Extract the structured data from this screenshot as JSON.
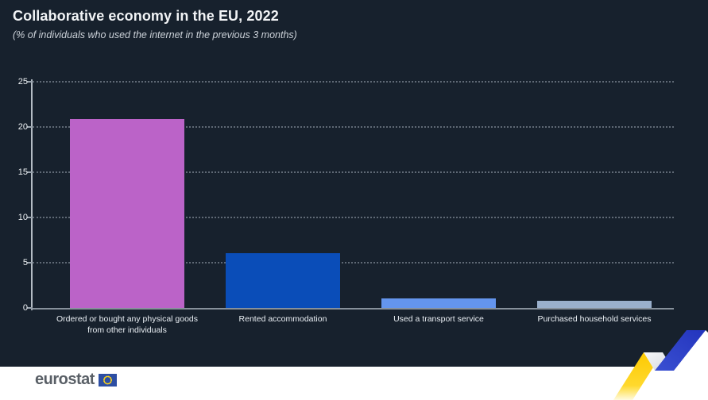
{
  "chart_data": {
    "type": "bar",
    "title": "Collaborative economy in the EU, 2022",
    "subtitle": "(% of individuals who used the internet in the previous 3 months)",
    "categories": [
      "Ordered or bought any physical goods from other individuals",
      "Rented accommodation",
      "Used a transport service",
      "Purchased household services"
    ],
    "values": [
      20.9,
      6.1,
      1.1,
      0.8
    ],
    "bar_colors": [
      "#bb63c8",
      "#0a4db8",
      "#6495ed",
      "#9ab0cc"
    ],
    "xlabel": "",
    "ylabel": "",
    "ylim": [
      0,
      25
    ],
    "yticks": [
      0,
      5,
      10,
      15,
      20,
      25
    ],
    "grid": "horizontal-dotted",
    "legend": "none",
    "background": "#17212d"
  },
  "footer": {
    "logo_text": "eurostat",
    "flag_icon": "eu-flag-icon",
    "decoration_colors": {
      "yellow": "#fdd015",
      "white": "#eceef1",
      "blue": "#2b3fc4"
    }
  }
}
